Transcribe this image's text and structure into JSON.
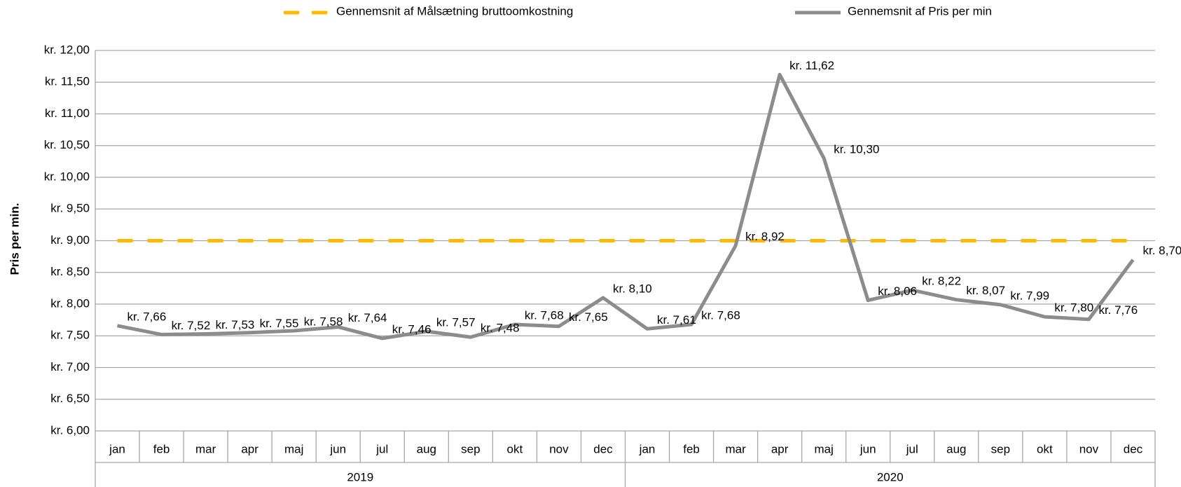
{
  "chart_data": {
    "type": "line",
    "y_label": "Pris per min.",
    "categories": [
      "jan",
      "feb",
      "mar",
      "apr",
      "maj",
      "jun",
      "jul",
      "aug",
      "sep",
      "okt",
      "nov",
      "dec",
      "jan",
      "feb",
      "mar",
      "apr",
      "maj",
      "jun",
      "jul",
      "aug",
      "sep",
      "okt",
      "nov",
      "dec"
    ],
    "groups": [
      "2019",
      "2020"
    ],
    "series": [
      {
        "name": "Gennemsnit af Målsætning bruttoomkostning",
        "color": "#ffb900",
        "dashed": true,
        "values": [
          9,
          9,
          9,
          9,
          9,
          9,
          9,
          9,
          9,
          9,
          9,
          9,
          9,
          9,
          9,
          9,
          9,
          9,
          9,
          9,
          9,
          9,
          9,
          9
        ]
      },
      {
        "name": "Gennemsnit af Pris per min",
        "color": "#8c8c8c",
        "dashed": false,
        "values": [
          7.66,
          7.52,
          7.53,
          7.55,
          7.58,
          7.64,
          7.46,
          7.57,
          7.48,
          7.68,
          7.65,
          8.1,
          7.61,
          7.68,
          8.92,
          11.62,
          10.3,
          8.06,
          8.22,
          8.07,
          7.99,
          7.8,
          7.76,
          8.7
        ],
        "value_labels": [
          "kr. 7,66",
          "kr. 7,52",
          "kr. 7,53",
          "kr. 7,55",
          "kr. 7,58",
          "kr. 7,64",
          "kr. 7,46",
          "kr. 7,57",
          "kr. 7,48",
          "kr. 7,68",
          "kr. 7,65",
          "kr. 8,10",
          "kr. 7,61",
          "kr. 7,68",
          "kr. 8,92",
          "kr. 11,62",
          "kr. 10,30",
          "kr. 8,06",
          "kr. 8,22",
          "kr. 8,07",
          "kr. 7,99",
          "kr. 7,80",
          "kr. 7,76",
          "kr. 8,70"
        ]
      }
    ],
    "ylim": [
      6,
      12
    ],
    "yticks": [
      {
        "value": 6,
        "label": "kr. 6,00"
      },
      {
        "value": 6.5,
        "label": "kr. 6,50"
      },
      {
        "value": 7,
        "label": "kr. 7,00"
      },
      {
        "value": 7.5,
        "label": "kr. 7,50"
      },
      {
        "value": 8,
        "label": "kr. 8,00"
      },
      {
        "value": 8.5,
        "label": "kr. 8,50"
      },
      {
        "value": 9,
        "label": "kr. 9,00"
      },
      {
        "value": 9.5,
        "label": "kr. 9,50"
      },
      {
        "value": 10,
        "label": "kr. 10,00"
      },
      {
        "value": 10.5,
        "label": "kr. 10,50"
      },
      {
        "value": 11,
        "label": "kr. 11,00"
      },
      {
        "value": 11.5,
        "label": "kr. 11,50"
      },
      {
        "value": 12,
        "label": "kr. 12,00"
      }
    ],
    "grid": true
  }
}
